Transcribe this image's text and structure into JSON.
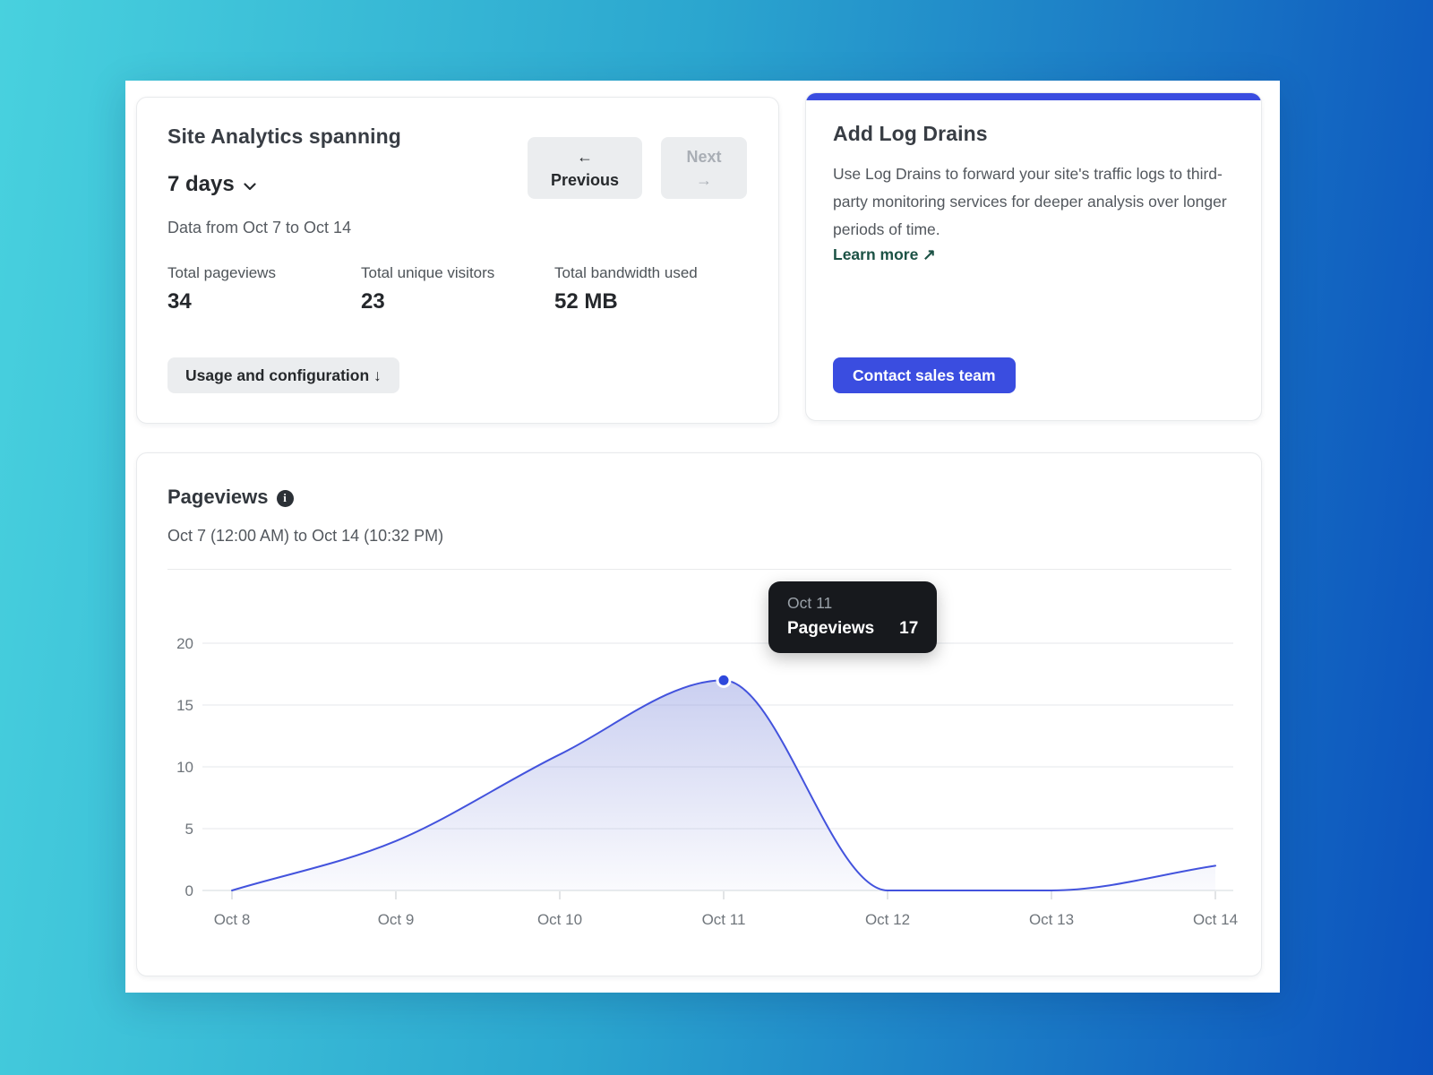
{
  "analytics_card": {
    "title": "Site Analytics spanning",
    "range_label": "7 days",
    "previous_arrow": "←",
    "previous_label": "Previous",
    "next_label": "Next",
    "next_arrow": "→",
    "data_range": "Data from Oct 7 to Oct 14",
    "stats": [
      {
        "label": "Total pageviews",
        "value": "34"
      },
      {
        "label": "Total unique visitors",
        "value": "23"
      },
      {
        "label": "Total bandwidth used",
        "value": "52 MB"
      }
    ],
    "usage_button": "Usage and configuration  ↓"
  },
  "log_drains_card": {
    "title": "Add Log Drains",
    "description": "Use Log Drains to forward your site's traffic logs to third-party monitoring services for deeper analysis over longer periods of time.",
    "learn_more": "Learn more ↗",
    "contact_button": "Contact sales team"
  },
  "pageviews_card": {
    "title": "Pageviews",
    "info_icon": "i",
    "subtitle": "Oct 7 (12:00 AM) to Oct 14 (10:32 PM)"
  },
  "tooltip": {
    "date": "Oct 11",
    "series": "Pageviews",
    "value": "17"
  },
  "chart_data": {
    "type": "area",
    "title": "Pageviews",
    "x": [
      "Oct 8",
      "Oct 9",
      "Oct 10",
      "Oct 11",
      "Oct 12",
      "Oct 13",
      "Oct 14"
    ],
    "values": [
      0,
      4,
      11,
      17,
      0,
      0,
      2
    ],
    "y_ticks": [
      0,
      5,
      10,
      15,
      20
    ],
    "ylim": [
      0,
      20
    ],
    "grid": true,
    "legend": "none",
    "highlight": {
      "x": "Oct 11",
      "value": 17
    },
    "line_color": "#4353dd",
    "fill_color": "#8994de",
    "dot_color": "#2e48dc"
  },
  "colors": {
    "accent_blue": "#3a4de0",
    "learn_more_green": "#1c5245",
    "background_left": "#48d1de",
    "background_right": "#0b51bd",
    "tooltip_bg": "#17191d"
  }
}
